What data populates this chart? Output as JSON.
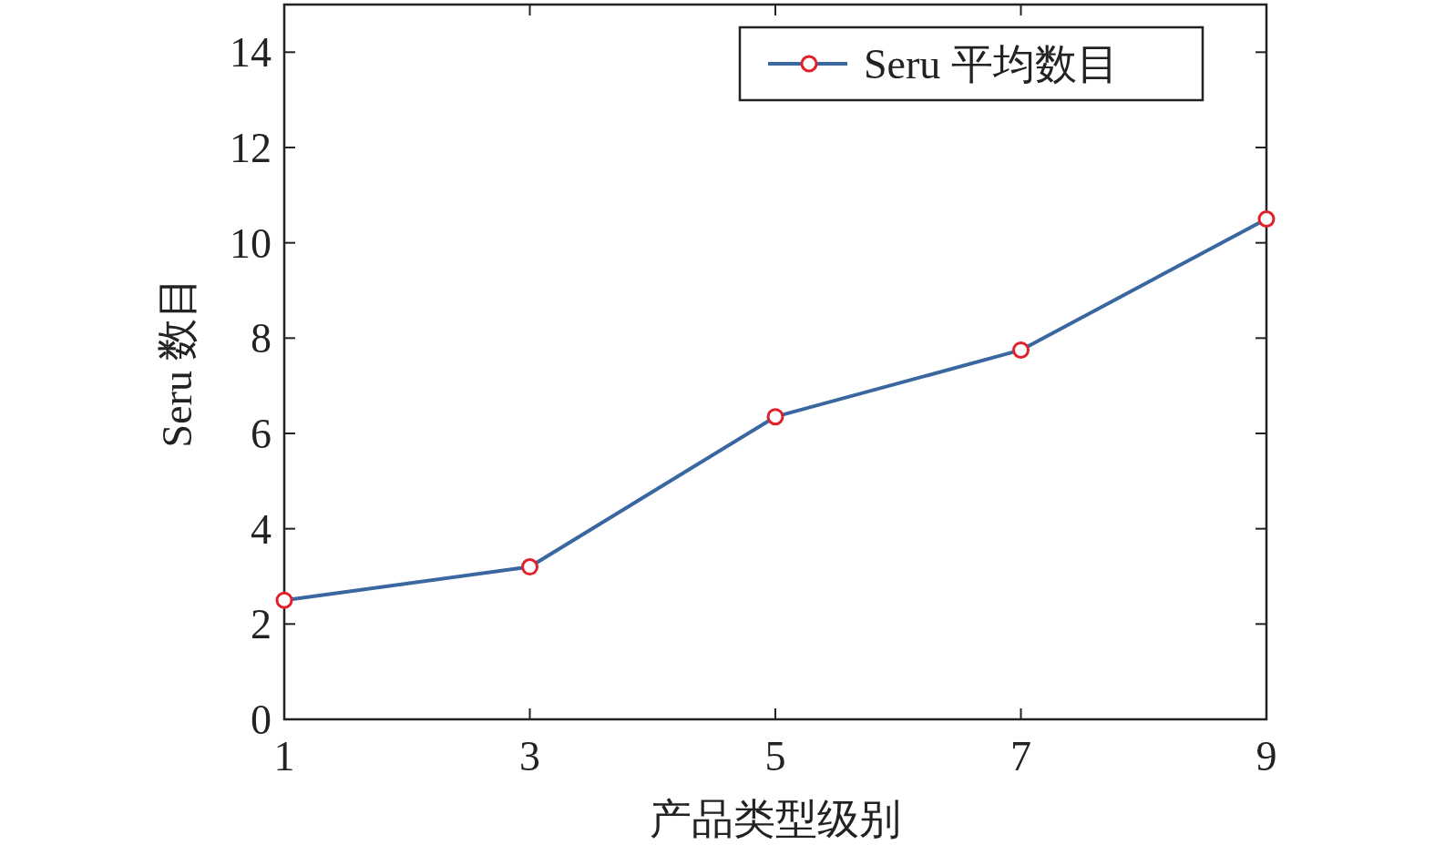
{
  "chart_data": {
    "type": "line",
    "xlabel": "产品类型级别",
    "ylabel": "Seru 数目",
    "x": [
      1,
      3,
      5,
      7,
      9
    ],
    "series": [
      {
        "name": "Seru 平均数目",
        "color": "#3a67a0",
        "values": [
          2.5,
          3.2,
          6.35,
          7.75,
          10.5
        ]
      }
    ],
    "xlim": [
      1,
      9
    ],
    "ylim": [
      0,
      15
    ],
    "xticks": [
      1,
      3,
      5,
      7,
      9
    ],
    "yticks": [
      0,
      2,
      4,
      6,
      8,
      10,
      12,
      14
    ],
    "legend": "top right",
    "marker": "circle"
  }
}
